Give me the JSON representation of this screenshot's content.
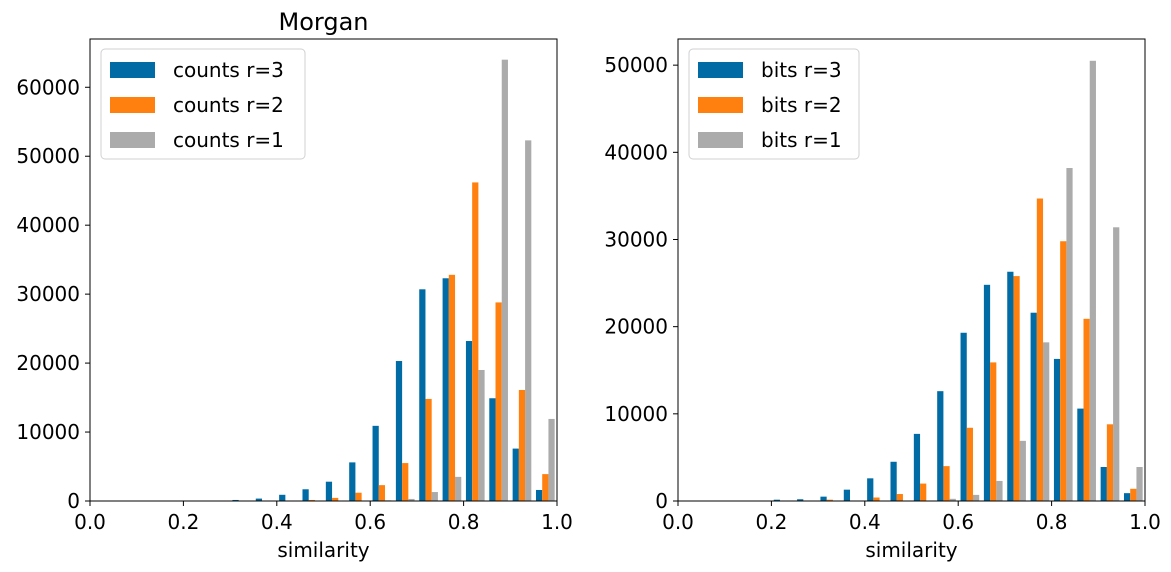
{
  "chart_data": [
    {
      "type": "bar",
      "title": "Morgan",
      "xlabel": "similarity",
      "ylabel": "",
      "xlim": [
        0.0,
        1.0
      ],
      "ylim": [
        0,
        67000
      ],
      "xticks": [
        "0.0",
        "0.2",
        "0.4",
        "0.6",
        "0.8",
        "1.0"
      ],
      "yticks": [
        0,
        10000,
        20000,
        30000,
        40000,
        50000,
        60000
      ],
      "ytick_labels": [
        "0",
        "10000",
        "20000",
        "30000",
        "40000",
        "50000",
        "60000"
      ],
      "legend_position": "top-left",
      "bin_edges": [
        0.0,
        0.05,
        0.1,
        0.15,
        0.2,
        0.25,
        0.3,
        0.35,
        0.4,
        0.45,
        0.5,
        0.55,
        0.6,
        0.65,
        0.7,
        0.75,
        0.8,
        0.85,
        0.9,
        0.95,
        1.0
      ],
      "series": [
        {
          "name": "counts r=3",
          "color": "#006ba4",
          "values": [
            0,
            0,
            0,
            0,
            0,
            0,
            150,
            350,
            900,
            1700,
            2800,
            5600,
            10900,
            20300,
            30700,
            32300,
            23200,
            14900,
            7600,
            1600
          ]
        },
        {
          "name": "counts r=2",
          "color": "#ff800e",
          "values": [
            0,
            0,
            0,
            0,
            0,
            0,
            0,
            0,
            0,
            150,
            450,
            1200,
            2300,
            5500,
            14800,
            32800,
            46200,
            28800,
            16100,
            3900
          ]
        },
        {
          "name": "counts r=1",
          "color": "#ababab",
          "values": [
            0,
            0,
            0,
            0,
            0,
            0,
            0,
            0,
            0,
            0,
            0,
            0,
            100,
            300,
            1300,
            3500,
            19000,
            64000,
            52300,
            11900
          ]
        }
      ]
    },
    {
      "type": "bar",
      "title": "",
      "xlabel": "similarity",
      "ylabel": "",
      "xlim": [
        0.0,
        1.0
      ],
      "ylim": [
        0,
        53000
      ],
      "xticks": [
        "0.0",
        "0.2",
        "0.4",
        "0.6",
        "0.8",
        "1.0"
      ],
      "yticks": [
        0,
        10000,
        20000,
        30000,
        40000,
        50000
      ],
      "ytick_labels": [
        "0",
        "10000",
        "20000",
        "30000",
        "40000",
        "50000"
      ],
      "legend_position": "top-left",
      "bin_edges": [
        0.0,
        0.05,
        0.1,
        0.15,
        0.2,
        0.25,
        0.3,
        0.35,
        0.4,
        0.45,
        0.5,
        0.55,
        0.6,
        0.65,
        0.7,
        0.75,
        0.8,
        0.85,
        0.9,
        0.95,
        1.0
      ],
      "series": [
        {
          "name": "bits r=3",
          "color": "#006ba4",
          "values": [
            0,
            0,
            0,
            0,
            150,
            200,
            500,
            1300,
            2600,
            4500,
            7700,
            12600,
            19300,
            24800,
            26300,
            21600,
            16300,
            10600,
            3900,
            900
          ]
        },
        {
          "name": "bits r=2",
          "color": "#ff800e",
          "values": [
            0,
            0,
            0,
            0,
            0,
            0,
            150,
            0,
            400,
            800,
            2000,
            4000,
            8400,
            15900,
            25800,
            34700,
            29800,
            20900,
            8800,
            1400
          ]
        },
        {
          "name": "bits r=1",
          "color": "#ababab",
          "values": [
            0,
            0,
            0,
            0,
            0,
            0,
            0,
            0,
            0,
            0,
            0,
            250,
            700,
            2300,
            6900,
            18200,
            38200,
            50500,
            31400,
            3900
          ]
        }
      ]
    }
  ]
}
